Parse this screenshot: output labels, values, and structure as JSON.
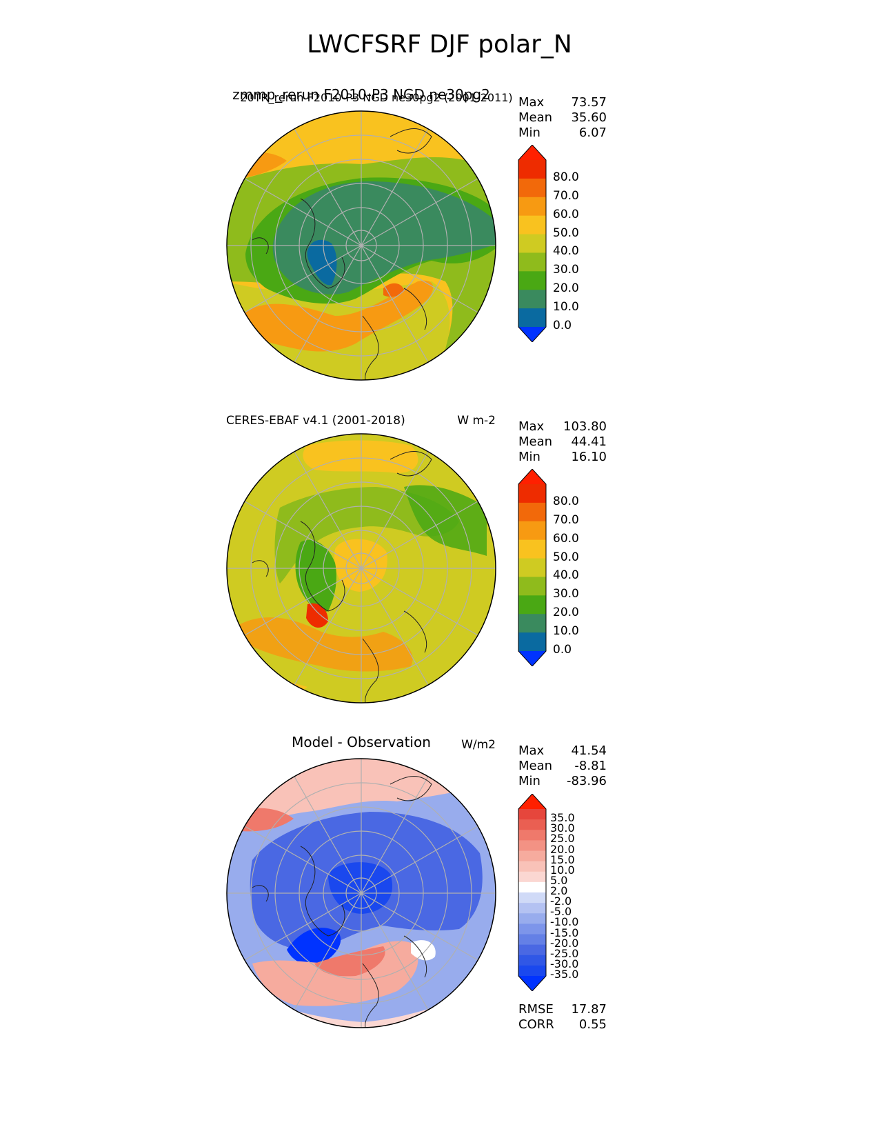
{
  "title": "LWCFSRF DJF polar_N",
  "overlap_titles": {
    "large": "zmmp_rerun F2010-P3 NGD ne30pg2",
    "small": "20TR_rerun F2010-P3 NGD ne30pg2 (2001-2011)"
  },
  "colors": {
    "levels_fill": [
      "#0033ff",
      "#0a6aa0",
      "#3a8a5e",
      "#4aa814",
      "#8fbb1c",
      "#cfcb22",
      "#f9c21f",
      "#f79a12",
      "#f2690a",
      "#ee2c00",
      "#ff2000"
    ],
    "diff_fill": [
      "#0033ff",
      "#1a48ee",
      "#3057e6",
      "#4a68e3",
      "#6480e6",
      "#7d95ea",
      "#98aced",
      "#b4c2f2",
      "#d0daf7",
      "#ffffff",
      "#fbd7d2",
      "#f9c2b8",
      "#f6ab9e",
      "#f39284",
      "#ef796b",
      "#ea5f52",
      "#e6463c",
      "#ff2000"
    ]
  },
  "panels": [
    {
      "id": "test",
      "left_title": "",
      "center_title": "",
      "units": "",
      "stats": [
        {
          "label": "Max",
          "value": "73.57"
        },
        {
          "label": "Mean",
          "value": "35.60"
        },
        {
          "label": "Min",
          "value": "6.07"
        }
      ],
      "colorbar_labels": [
        "80.0",
        "70.0",
        "60.0",
        "50.0",
        "40.0",
        "30.0",
        "20.0",
        "10.0",
        "0.0"
      ]
    },
    {
      "id": "reference",
      "left_title": "CERES-EBAF v4.1 (2001-2018)",
      "center_title": "",
      "units": "W m-2",
      "stats": [
        {
          "label": "Max",
          "value": "103.80"
        },
        {
          "label": "Mean",
          "value": "44.41"
        },
        {
          "label": "Min",
          "value": "16.10"
        }
      ],
      "colorbar_labels": [
        "80.0",
        "70.0",
        "60.0",
        "50.0",
        "40.0",
        "30.0",
        "20.0",
        "10.0",
        "0.0"
      ]
    },
    {
      "id": "difference",
      "left_title": "",
      "center_title": "Model - Observation",
      "units": "W/m2",
      "stats": [
        {
          "label": "Max",
          "value": "41.54"
        },
        {
          "label": "Mean",
          "value": "-8.81"
        },
        {
          "label": "Min",
          "value": "-83.96"
        }
      ],
      "colorbar_labels": [
        "35.0",
        "30.0",
        "25.0",
        "20.0",
        "15.0",
        "10.0",
        "5.0",
        "2.0",
        "-2.0",
        "-5.0",
        "-10.0",
        "-15.0",
        "-20.0",
        "-25.0",
        "-30.0",
        "-35.0"
      ],
      "extra_stats": [
        {
          "label": "RMSE",
          "value": "17.87"
        },
        {
          "label": "CORR",
          "value": "0.55"
        }
      ]
    }
  ]
}
